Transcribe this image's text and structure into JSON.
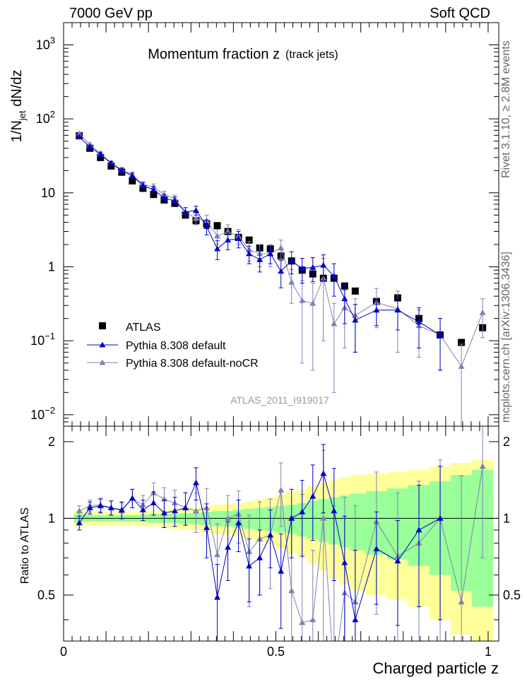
{
  "header": {
    "left": "7000 GeV pp",
    "right": "Soft QCD"
  },
  "side_labels": {
    "rivet": "Rivet 3.1.10, ≥ 2.8M events",
    "mcplots": "mcplots.cern.ch [arXiv:1306.3436]"
  },
  "chart_data": {
    "type": "scatter",
    "title": "Momentum fraction z",
    "subtitle": "(track jets)",
    "analysis_label": "ATLAS_2011_I919017",
    "xlabel": "Charged particle z",
    "ylabel": "1/N_jet dN/dz",
    "ylabel_ratio": "Ratio to ATLAS",
    "xlim": [
      0,
      1.025
    ],
    "ylim": [
      0.007,
      2000
    ],
    "ratio_ylim": [
      0.33,
      2.3
    ],
    "yscale": "log",
    "x_ticks": [
      "0",
      "0.5",
      "1"
    ],
    "y_ticks": [
      "10^-2",
      "10^-1",
      "1",
      "10",
      "10^2",
      "10^3"
    ],
    "ratio_ticks": [
      "0.5",
      "1",
      "2"
    ],
    "legend_position": "lower-left",
    "colors": {
      "atlas": "#000000",
      "default": "#0000cc",
      "nocr": "#8080b3",
      "band_inner": "#99ff99",
      "band_outer": "#ffff99"
    },
    "x": [
      0.037,
      0.062,
      0.087,
      0.112,
      0.137,
      0.162,
      0.187,
      0.212,
      0.237,
      0.262,
      0.287,
      0.312,
      0.337,
      0.362,
      0.387,
      0.412,
      0.437,
      0.462,
      0.487,
      0.512,
      0.537,
      0.562,
      0.587,
      0.612,
      0.637,
      0.662,
      0.687,
      0.737,
      0.787,
      0.837,
      0.887,
      0.937,
      0.987
    ],
    "series": [
      {
        "name": "ATLAS",
        "marker": "square",
        "values": [
          59,
          40,
          30,
          23,
          19,
          14.5,
          11.5,
          9.5,
          8,
          7.2,
          5,
          4.2,
          3.8,
          3.6,
          3,
          2.5,
          2.3,
          1.8,
          1.75,
          1.4,
          1.2,
          0.9,
          0.8,
          0.7,
          0.7,
          0.55,
          0.47,
          0.34,
          0.38,
          0.2,
          0.12,
          0.095,
          0.15
        ]
      },
      {
        "name": "Pythia 8.308 default",
        "marker": "triangle",
        "values": [
          57,
          42,
          33,
          25,
          20,
          17,
          12.5,
          11,
          8.5,
          7.8,
          5.5,
          5.8,
          3.5,
          1.75,
          2.3,
          2.4,
          1.5,
          1.25,
          1.5,
          0.87,
          1.2,
          0.95,
          0.98,
          1.05,
          0.75,
          0.37,
          0.19,
          0.26,
          0.26,
          0.18,
          0.12,
          0,
          0
        ],
        "errors": [
          3,
          2,
          2,
          1.5,
          1.5,
          1.5,
          1.2,
          1.2,
          1,
          1,
          0.8,
          0.8,
          0.8,
          0.5,
          0.6,
          0.6,
          0.4,
          0.4,
          0.4,
          0.35,
          0.4,
          0.35,
          0.35,
          0.4,
          0.35,
          0.2,
          0.12,
          0.1,
          0.12,
          0.1,
          0.08,
          0,
          0
        ]
      },
      {
        "name": "Pythia 8.308 default-noCR",
        "marker": "triangle",
        "values": [
          63,
          45,
          34,
          25.5,
          20.5,
          17.5,
          13,
          12,
          9.5,
          8.3,
          5.5,
          4.5,
          4.2,
          2.6,
          3,
          2.6,
          1.7,
          1.5,
          1.5,
          1.8,
          0.62,
          0.35,
          0.32,
          0.7,
          0.17,
          0.28,
          0.22,
          0.33,
          0.27,
          0.16,
          0.12,
          0.045,
          0.24
        ],
        "errors": [
          3,
          2.5,
          2,
          1.5,
          1.5,
          1.5,
          1.2,
          1.2,
          1,
          1,
          0.8,
          0.8,
          0.8,
          0.6,
          0.7,
          0.6,
          0.5,
          0.5,
          0.5,
          0.5,
          0.3,
          0.3,
          0.28,
          0.6,
          0.15,
          0.2,
          0.15,
          0.18,
          0.2,
          0.1,
          0.08,
          0.045,
          0.13
        ]
      }
    ],
    "ratio": {
      "default": [
        0.96,
        1.1,
        1.12,
        1.1,
        1.08,
        1.2,
        1.08,
        1.15,
        1.05,
        1.07,
        1.1,
        1.38,
        0.92,
        0.49,
        0.77,
        0.96,
        0.65,
        0.7,
        0.86,
        0.62,
        1.0,
        1.06,
        1.22,
        1.5,
        1.07,
        0.67,
        0.4,
        0.76,
        0.68,
        0.9,
        1.0,
        0,
        0
      ],
      "default_err": [
        0.06,
        0.06,
        0.07,
        0.07,
        0.08,
        0.1,
        0.1,
        0.12,
        0.13,
        0.14,
        0.16,
        0.2,
        0.22,
        0.17,
        0.2,
        0.22,
        0.18,
        0.2,
        0.22,
        0.25,
        0.3,
        0.35,
        0.4,
        0.45,
        0.5,
        0.35,
        0.35,
        0.3,
        0.3,
        0.45,
        0.6,
        0,
        0
      ],
      "nocr": [
        1.07,
        1.12,
        1.13,
        1.1,
        1.07,
        1.2,
        1.13,
        1.26,
        1.19,
        1.15,
        1.1,
        1.07,
        1.1,
        0.72,
        1.0,
        1.04,
        0.74,
        0.83,
        0.86,
        1.29,
        0.52,
        0.39,
        0.4,
        1.0,
        0.24,
        0.51,
        0.47,
        0.97,
        0.71,
        0.8,
        1.0,
        0.47,
        1.6
      ],
      "nocr_err": [
        0.05,
        0.06,
        0.07,
        0.07,
        0.08,
        0.1,
        0.1,
        0.12,
        0.13,
        0.14,
        0.16,
        0.19,
        0.21,
        0.23,
        0.23,
        0.24,
        0.29,
        0.33,
        0.33,
        0.36,
        0.5,
        0.85,
        0.35,
        0.85,
        0.88,
        0.7,
        0.65,
        0.55,
        0.55,
        0.6,
        0.7,
        1.0,
        0.9
      ],
      "band_inner": [
        0.04,
        0.03,
        0.03,
        0.03,
        0.03,
        0.03,
        0.03,
        0.04,
        0.04,
        0.04,
        0.05,
        0.05,
        0.06,
        0.07,
        0.07,
        0.08,
        0.09,
        0.1,
        0.11,
        0.12,
        0.13,
        0.15,
        0.17,
        0.19,
        0.21,
        0.23,
        0.25,
        0.28,
        0.31,
        0.35,
        0.4,
        0.48,
        0.55
      ],
      "band_outer": [
        0.08,
        0.06,
        0.06,
        0.06,
        0.06,
        0.06,
        0.07,
        0.07,
        0.08,
        0.09,
        0.1,
        0.1,
        0.12,
        0.13,
        0.14,
        0.15,
        0.17,
        0.19,
        0.21,
        0.24,
        0.27,
        0.3,
        0.34,
        0.38,
        0.42,
        0.45,
        0.48,
        0.5,
        0.52,
        0.55,
        0.6,
        0.65,
        0.7
      ]
    }
  }
}
